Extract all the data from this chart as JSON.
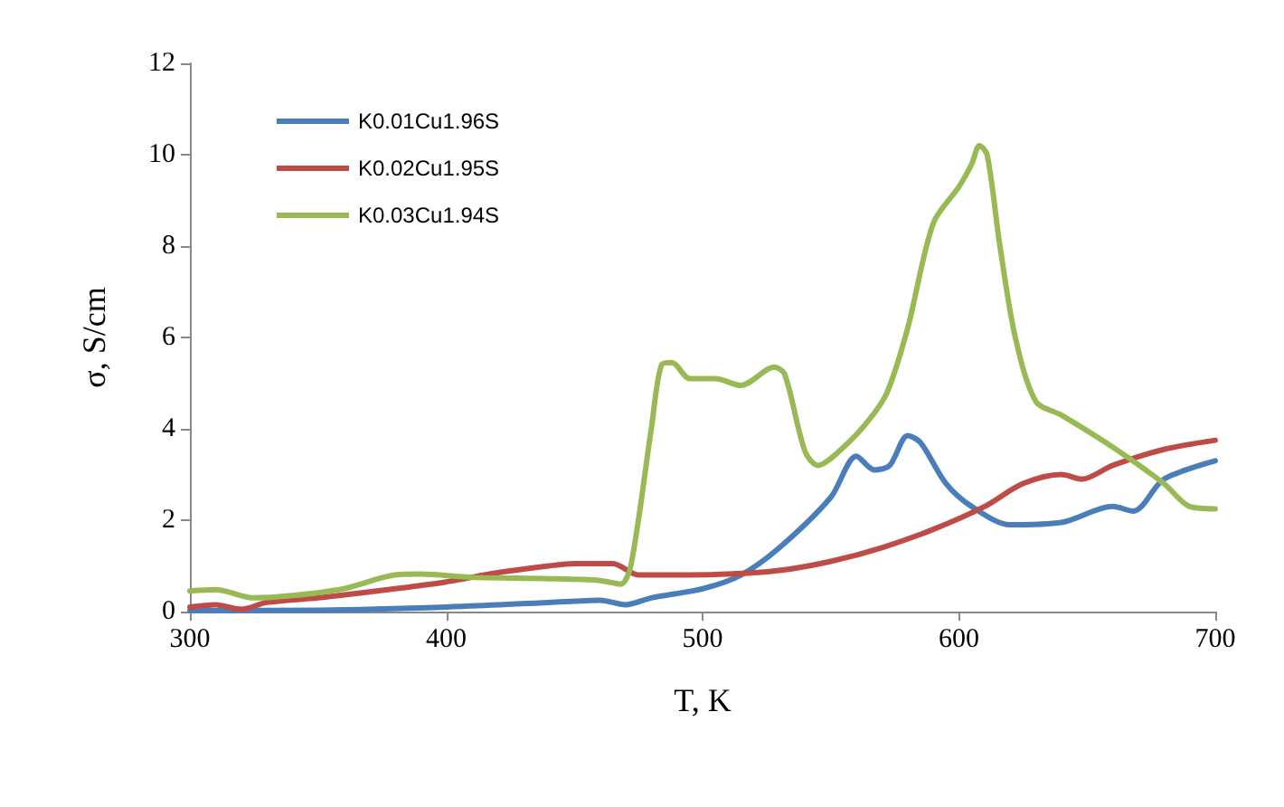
{
  "chart_data": {
    "type": "line",
    "xlabel": "T, K",
    "ylabel": "σ, S/cm",
    "xlim": [
      300,
      700
    ],
    "xticks": [
      300,
      400,
      500,
      600,
      700
    ],
    "ylim": [
      0,
      12
    ],
    "yticks": [
      0,
      2,
      4,
      6,
      8,
      10,
      12
    ],
    "grid": false,
    "legend": "top left",
    "marker": "none",
    "line_style": "solid",
    "series": [
      {
        "name": "K0.01Cu1.96S",
        "color": "#4a7ebb",
        "x": [
          300,
          350,
          400,
          440,
          460,
          470,
          480,
          500,
          515,
          530,
          550,
          560,
          567,
          573,
          580,
          585,
          595,
          605,
          620,
          640,
          660,
          668,
          680,
          700
        ],
        "values": [
          0.02,
          0.03,
          0.1,
          0.2,
          0.25,
          0.15,
          0.3,
          0.5,
          0.8,
          1.4,
          2.5,
          3.4,
          3.1,
          3.2,
          3.85,
          3.7,
          2.8,
          2.3,
          1.9,
          1.95,
          2.3,
          2.2,
          2.9,
          3.3
        ]
      },
      {
        "name": "K0.02Cu1.95S",
        "color": "#be4b48",
        "x": [
          300,
          310,
          320,
          330,
          350,
          380,
          400,
          420,
          440,
          450,
          465,
          475,
          490,
          510,
          530,
          550,
          570,
          590,
          610,
          625,
          640,
          648,
          660,
          680,
          700
        ],
        "values": [
          0.1,
          0.15,
          0.05,
          0.2,
          0.3,
          0.5,
          0.65,
          0.85,
          1.0,
          1.05,
          1.05,
          0.8,
          0.8,
          0.82,
          0.9,
          1.1,
          1.4,
          1.8,
          2.3,
          2.8,
          3.0,
          2.9,
          3.2,
          3.55,
          3.75
        ]
      },
      {
        "name": "K0.03Cu1.94S",
        "color": "#98b954",
        "x": [
          300,
          310,
          325,
          340,
          360,
          380,
          390,
          410,
          440,
          460,
          468,
          472,
          480,
          484,
          488,
          495,
          505,
          515,
          528,
          532,
          540,
          545,
          555,
          565,
          572,
          580,
          590,
          600,
          605,
          608,
          611,
          616,
          622,
          630,
          640,
          660,
          680,
          690,
          700
        ],
        "values": [
          0.45,
          0.48,
          0.3,
          0.35,
          0.5,
          0.8,
          0.82,
          0.75,
          0.72,
          0.68,
          0.6,
          1.0,
          4.0,
          5.4,
          5.45,
          5.1,
          5.1,
          4.95,
          5.35,
          5.2,
          3.5,
          3.2,
          3.6,
          4.2,
          4.8,
          6.2,
          8.5,
          9.3,
          9.8,
          10.2,
          10.0,
          8.0,
          6.0,
          4.6,
          4.3,
          3.6,
          2.8,
          2.3,
          2.25
        ]
      }
    ]
  }
}
